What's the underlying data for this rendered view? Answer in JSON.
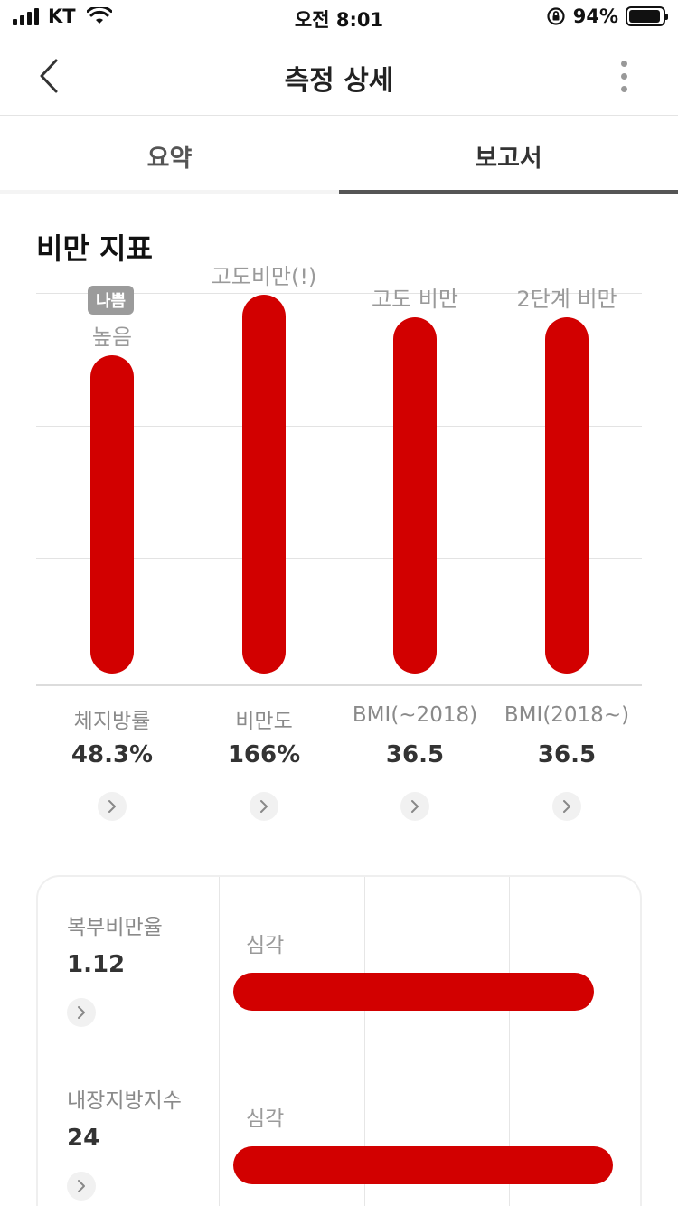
{
  "status_bar": {
    "carrier": "KT",
    "time": "오전 8:01",
    "battery": "94%",
    "battery_level": 0.94
  },
  "header": {
    "title": "측정 상세",
    "back_icon": "chevron-left-icon",
    "more_icon": "more-vertical-icon"
  },
  "tabs": [
    {
      "label": "요약",
      "active": false
    },
    {
      "label": "보고서",
      "active": true
    }
  ],
  "section_title": "비만 지표",
  "badge": "나쁨",
  "chart_data": {
    "type": "bar",
    "categories": [
      "체지방률",
      "비만도",
      "BMI(~2018)",
      "BMI(2018~)"
    ],
    "category_labels": [
      "높음",
      "고도비만(!)",
      "고도 비만",
      "2단계 비만"
    ],
    "value_labels": [
      "48.3%",
      "166%",
      "36.5",
      "36.5"
    ],
    "values": [
      0.84,
      1.0,
      0.94,
      0.94
    ],
    "bar_color": "#d20000"
  },
  "card": {
    "rows": [
      {
        "name": "복부비만율",
        "value": "1.12",
        "level": "심각",
        "fill": 0.95
      },
      {
        "name": "내장지방지수",
        "value": "24",
        "level": "심각",
        "fill": 1.0
      }
    ]
  },
  "colors": {
    "accent": "#d20000",
    "badge": "#9b9b9b"
  }
}
